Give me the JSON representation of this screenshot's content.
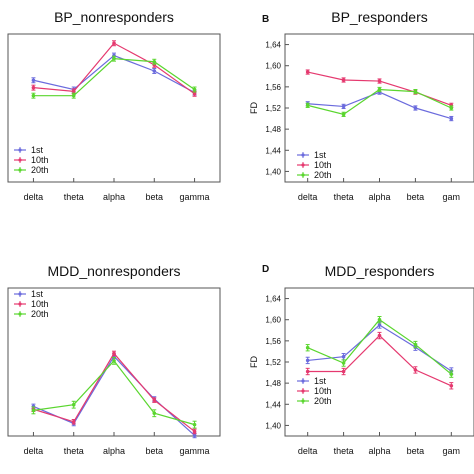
{
  "chart_data": [
    {
      "type": "line",
      "letter": "",
      "title": "BP_nonresponders",
      "ylabel": "",
      "show_yticks": false,
      "ylim": [
        1.4,
        1.64
      ],
      "yticks": [],
      "categories": [
        "delta",
        "theta",
        "alpha",
        "beta",
        "gamma"
      ],
      "series": [
        {
          "name": "1st",
          "color": "#6b6bdd",
          "values": [
            1.565,
            1.55,
            1.605,
            1.58,
            1.545
          ],
          "err": [
            0.004,
            0.004,
            0.004,
            0.004,
            0.004
          ]
        },
        {
          "name": "10th",
          "color": "#e5396f",
          "values": [
            1.553,
            1.547,
            1.625,
            1.59,
            1.543
          ],
          "err": [
            0.004,
            0.004,
            0.004,
            0.004,
            0.004
          ]
        },
        {
          "name": "20th",
          "color": "#5ad62e",
          "values": [
            1.54,
            1.54,
            1.6,
            1.595,
            1.55
          ],
          "err": [
            0.004,
            0.004,
            0.004,
            0.004,
            0.004
          ]
        }
      ]
    },
    {
      "type": "line",
      "letter": "B",
      "title": "BP_responders",
      "ylabel": "FD",
      "show_yticks": true,
      "ylim": [
        1.38,
        1.66
      ],
      "yticks": [
        "1,40",
        "1,44",
        "1,48",
        "1,52",
        "1,56",
        "1,60",
        "1,64"
      ],
      "ytick_values": [
        1.4,
        1.44,
        1.48,
        1.52,
        1.56,
        1.6,
        1.64
      ],
      "categories": [
        "delta",
        "theta",
        "alpha",
        "beta",
        "gam"
      ],
      "series": [
        {
          "name": "1st",
          "color": "#6b6bdd",
          "values": [
            1.528,
            1.523,
            1.55,
            1.52,
            1.5
          ],
          "err": [
            0.004,
            0.004,
            0.004,
            0.004,
            0.004
          ]
        },
        {
          "name": "10th",
          "color": "#e5396f",
          "values": [
            1.588,
            1.573,
            1.571,
            1.55,
            1.525
          ],
          "err": [
            0.004,
            0.004,
            0.004,
            0.004,
            0.004
          ]
        },
        {
          "name": "20th",
          "color": "#5ad62e",
          "values": [
            1.525,
            1.508,
            1.555,
            1.551,
            1.52
          ],
          "err": [
            0.004,
            0.004,
            0.004,
            0.004,
            0.004
          ]
        }
      ]
    },
    {
      "type": "line",
      "letter": "",
      "title": "MDD_nonresponders",
      "ylabel": "",
      "show_yticks": false,
      "ylim": [
        1.4,
        1.66
      ],
      "yticks": [],
      "categories": [
        "delta",
        "theta",
        "alpha",
        "beta",
        "gamma"
      ],
      "series": [
        {
          "name": "1st",
          "color": "#6b6bdd",
          "values": [
            1.452,
            1.422,
            1.54,
            1.465,
            1.401
          ],
          "err": [
            0.004,
            0.004,
            0.004,
            0.004,
            0.004
          ]
        },
        {
          "name": "10th",
          "color": "#e5396f",
          "values": [
            1.447,
            1.425,
            1.545,
            1.463,
            1.408
          ],
          "err": [
            0.004,
            0.004,
            0.004,
            0.004,
            0.004
          ]
        },
        {
          "name": "20th",
          "color": "#5ad62e",
          "values": [
            1.445,
            1.455,
            1.532,
            1.44,
            1.42
          ],
          "err": [
            0.006,
            0.006,
            0.006,
            0.006,
            0.006
          ]
        }
      ]
    },
    {
      "type": "line",
      "letter": "D",
      "title": "MDD_responders",
      "ylabel": "FD",
      "show_yticks": true,
      "ylim": [
        1.38,
        1.66
      ],
      "yticks": [
        "1,40",
        "1,44",
        "1,48",
        "1,52",
        "1,56",
        "1,60",
        "1,64"
      ],
      "ytick_values": [
        1.4,
        1.44,
        1.48,
        1.52,
        1.56,
        1.6,
        1.64
      ],
      "categories": [
        "delta",
        "theta",
        "alpha",
        "beta",
        "gam"
      ],
      "series": [
        {
          "name": "1st",
          "color": "#6b6bdd",
          "values": [
            1.523,
            1.53,
            1.59,
            1.548,
            1.503
          ],
          "err": [
            0.006,
            0.006,
            0.006,
            0.006,
            0.006
          ]
        },
        {
          "name": "10th",
          "color": "#e5396f",
          "values": [
            1.502,
            1.502,
            1.57,
            1.505,
            1.475
          ],
          "err": [
            0.006,
            0.006,
            0.006,
            0.006,
            0.006
          ]
        },
        {
          "name": "20th",
          "color": "#5ad62e",
          "values": [
            1.547,
            1.518,
            1.6,
            1.553,
            1.497
          ],
          "err": [
            0.006,
            0.006,
            0.006,
            0.006,
            0.006
          ]
        }
      ]
    }
  ]
}
